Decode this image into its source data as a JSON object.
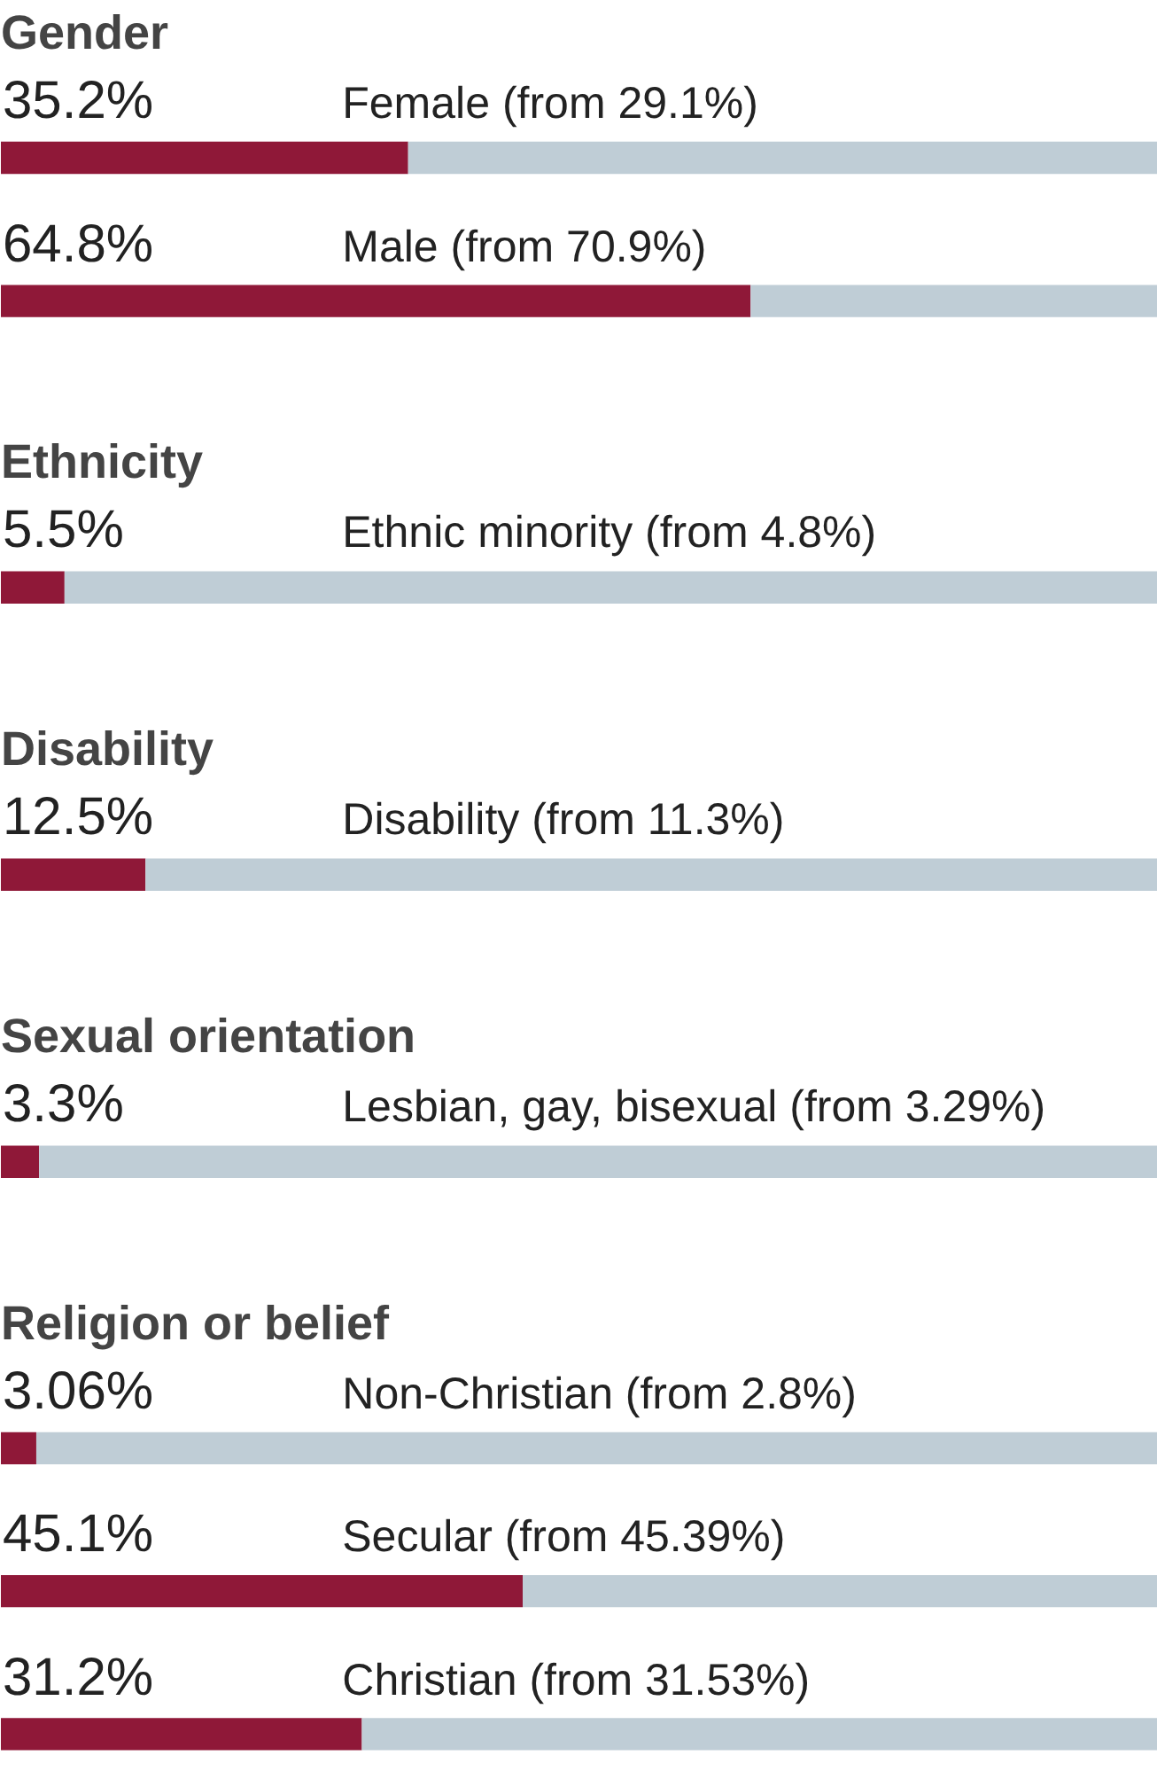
{
  "chart_data": [
    {
      "type": "bar",
      "orientation": "horizontal",
      "stacked": true,
      "title": "Gender",
      "categories": [
        "Female (from 29.1%)",
        "Male (from 70.9%)"
      ],
      "xlim": [
        0,
        100
      ],
      "tick_labels": false,
      "grid": false,
      "series": [
        {
          "color": "#8f1838",
          "values": [
            35.2,
            64.8
          ],
          "value_labels": [
            "35.2%",
            "64.8%"
          ]
        },
        {
          "color": "#bfcdd6",
          "values": [
            64.8,
            35.2
          ]
        }
      ]
    },
    {
      "type": "bar",
      "orientation": "horizontal",
      "stacked": true,
      "title": "Ethnicity",
      "categories": [
        "Ethnic minority (from 4.8%)"
      ],
      "xlim": [
        0,
        100
      ],
      "tick_labels": false,
      "grid": false,
      "series": [
        {
          "color": "#8f1838",
          "values": [
            5.5
          ],
          "value_labels": [
            "5.5%"
          ]
        },
        {
          "color": "#bfcdd6",
          "values": [
            94.5
          ]
        }
      ]
    },
    {
      "type": "bar",
      "orientation": "horizontal",
      "stacked": true,
      "title": "Disability",
      "categories": [
        "Disability (from 11.3%)"
      ],
      "xlim": [
        0,
        100
      ],
      "tick_labels": false,
      "grid": false,
      "series": [
        {
          "color": "#8f1838",
          "values": [
            12.5
          ],
          "value_labels": [
            "12.5%"
          ]
        },
        {
          "color": "#bfcdd6",
          "values": [
            87.5
          ]
        }
      ]
    },
    {
      "type": "bar",
      "orientation": "horizontal",
      "stacked": true,
      "title": "Sexual orientation",
      "categories": [
        "Lesbian, gay, bisexual (from 3.29%)"
      ],
      "xlim": [
        0,
        100
      ],
      "tick_labels": false,
      "grid": false,
      "series": [
        {
          "color": "#8f1838",
          "values": [
            3.3
          ],
          "value_labels": [
            "3.3%"
          ]
        },
        {
          "color": "#bfcdd6",
          "values": [
            96.7
          ]
        }
      ]
    },
    {
      "type": "bar",
      "orientation": "horizontal",
      "stacked": true,
      "title": "Religion or belief",
      "categories": [
        "Non-Christian (from 2.8%)",
        "Secular (from 45.39%)",
        "Christian (from 31.53%)"
      ],
      "xlim": [
        0,
        100
      ],
      "tick_labels": false,
      "grid": false,
      "series": [
        {
          "color": "#8f1838",
          "values": [
            3.06,
            45.1,
            31.2
          ],
          "value_labels": [
            "3.06%",
            "45.1%",
            "31.2%"
          ]
        },
        {
          "color": "#bfcdd6",
          "values": [
            96.94,
            54.9,
            68.8
          ]
        }
      ]
    }
  ]
}
